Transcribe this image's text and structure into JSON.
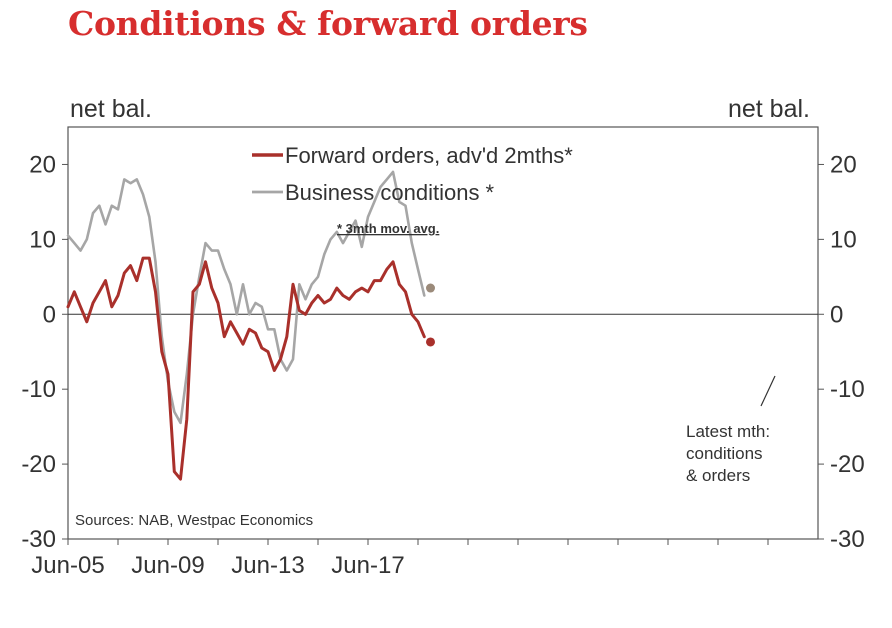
{
  "title": "Conditions & forward orders",
  "chart_data": {
    "type": "line",
    "ylabel_left": "net bal.",
    "ylabel_right": "net bal.",
    "ylim": [
      -30,
      25
    ],
    "yticks": [
      20,
      10,
      0,
      -10,
      -20,
      -30
    ],
    "x_range": [
      "2005-06",
      "2019-09"
    ],
    "x_tick_labels": [
      "Jun-05",
      "Jun-09",
      "Jun-13",
      "Jun-17"
    ],
    "grid": false,
    "legend_position": "top-center",
    "note": "* 3mth mov. avg.",
    "source": "Sources: NAB, Westpac Economics",
    "annotation": [
      "Latest mth:",
      "conditions",
      "& orders"
    ],
    "colors": {
      "forward_orders": "#a9302b",
      "business_conditions": "#a6a6a6",
      "title": "#d72e2e",
      "latest_conditions_dot": "#9b8a7a"
    },
    "series": [
      {
        "name": "Forward orders, adv'd 2mths*",
        "color": "#a9302b",
        "points": [
          [
            "2005-06",
            1
          ],
          [
            "2005-09",
            3
          ],
          [
            "2005-12",
            1
          ],
          [
            "2006-03",
            -1
          ],
          [
            "2006-06",
            1.5
          ],
          [
            "2006-09",
            3
          ],
          [
            "2006-12",
            4.5
          ],
          [
            "2007-03",
            1
          ],
          [
            "2007-06",
            2.5
          ],
          [
            "2007-09",
            5.5
          ],
          [
            "2007-12",
            6.5
          ],
          [
            "2008-03",
            4.5
          ],
          [
            "2008-06",
            7.5
          ],
          [
            "2008-09",
            7.5
          ],
          [
            "2008-12",
            3
          ],
          [
            "2009-03",
            -5
          ],
          [
            "2009-06",
            -8
          ],
          [
            "2009-09",
            -21
          ],
          [
            "2009-12",
            -22
          ],
          [
            "2010-03",
            -14
          ],
          [
            "2010-06",
            3
          ],
          [
            "2010-09",
            4
          ],
          [
            "2010-12",
            7
          ],
          [
            "2011-03",
            3.5
          ],
          [
            "2011-06",
            1.5
          ],
          [
            "2011-09",
            -3
          ],
          [
            "2011-12",
            -1
          ],
          [
            "2012-03",
            -2.5
          ],
          [
            "2012-06",
            -4
          ],
          [
            "2012-09",
            -2
          ],
          [
            "2012-12",
            -2.5
          ],
          [
            "2013-03",
            -4.5
          ],
          [
            "2013-06",
            -5
          ],
          [
            "2013-09",
            -7.5
          ],
          [
            "2013-12",
            -6
          ],
          [
            "2014-03",
            -3
          ],
          [
            "2014-06",
            4
          ],
          [
            "2014-09",
            0.5
          ],
          [
            "2014-12",
            0
          ],
          [
            "2015-03",
            1.5
          ],
          [
            "2015-06",
            2.5
          ],
          [
            "2015-09",
            1.5
          ],
          [
            "2015-12",
            2
          ],
          [
            "2016-03",
            3.5
          ],
          [
            "2016-06",
            2.5
          ],
          [
            "2016-09",
            2
          ],
          [
            "2016-12",
            3
          ],
          [
            "2017-03",
            3.5
          ],
          [
            "2017-06",
            3
          ],
          [
            "2017-09",
            4.5
          ],
          [
            "2017-12",
            4.5
          ],
          [
            "2018-03",
            6
          ],
          [
            "2018-06",
            7
          ],
          [
            "2018-09",
            4
          ],
          [
            "2018-12",
            3
          ],
          [
            "2019-03",
            0
          ],
          [
            "2019-06",
            -1
          ],
          [
            "2019-09",
            -3
          ]
        ],
        "latest": [
          "2019-12",
          -3.7
        ]
      },
      {
        "name": "Business conditions *",
        "color": "#a6a6a6",
        "points": [
          [
            "2005-06",
            10.5
          ],
          [
            "2005-09",
            9.5
          ],
          [
            "2005-12",
            8.5
          ],
          [
            "2006-03",
            10
          ],
          [
            "2006-06",
            13.5
          ],
          [
            "2006-09",
            14.5
          ],
          [
            "2006-12",
            12
          ],
          [
            "2007-03",
            14.5
          ],
          [
            "2007-06",
            14
          ],
          [
            "2007-09",
            18
          ],
          [
            "2007-12",
            17.5
          ],
          [
            "2008-03",
            18
          ],
          [
            "2008-06",
            16
          ],
          [
            "2008-09",
            13
          ],
          [
            "2008-12",
            7
          ],
          [
            "2009-03",
            -3
          ],
          [
            "2009-06",
            -9
          ],
          [
            "2009-09",
            -13
          ],
          [
            "2009-12",
            -14.5
          ],
          [
            "2010-03",
            -8
          ],
          [
            "2010-06",
            0
          ],
          [
            "2010-09",
            5
          ],
          [
            "2010-12",
            9.5
          ],
          [
            "2011-03",
            8.5
          ],
          [
            "2011-06",
            8.5
          ],
          [
            "2011-09",
            6
          ],
          [
            "2011-12",
            4
          ],
          [
            "2012-03",
            0
          ],
          [
            "2012-06",
            4
          ],
          [
            "2012-09",
            0
          ],
          [
            "2012-12",
            1.5
          ],
          [
            "2013-03",
            1
          ],
          [
            "2013-06",
            -2
          ],
          [
            "2013-09",
            -2
          ],
          [
            "2013-12",
            -6
          ],
          [
            "2014-03",
            -7.5
          ],
          [
            "2014-06",
            -6
          ],
          [
            "2014-09",
            4
          ],
          [
            "2014-12",
            2
          ],
          [
            "2015-03",
            4
          ],
          [
            "2015-06",
            5
          ],
          [
            "2015-09",
            8
          ],
          [
            "2015-12",
            10
          ],
          [
            "2016-03",
            11
          ],
          [
            "2016-06",
            9.5
          ],
          [
            "2016-09",
            11
          ],
          [
            "2016-12",
            12.5
          ],
          [
            "2017-03",
            9
          ],
          [
            "2017-06",
            13
          ],
          [
            "2017-09",
            15
          ],
          [
            "2017-12",
            17
          ],
          [
            "2018-03",
            18
          ],
          [
            "2018-06",
            19
          ],
          [
            "2018-09",
            15
          ],
          [
            "2018-12",
            14.5
          ],
          [
            "2019-03",
            9.5
          ],
          [
            "2019-06",
            6
          ],
          [
            "2019-09",
            2.5
          ]
        ],
        "latest": [
          "2019-12",
          3.5
        ]
      }
    ]
  }
}
